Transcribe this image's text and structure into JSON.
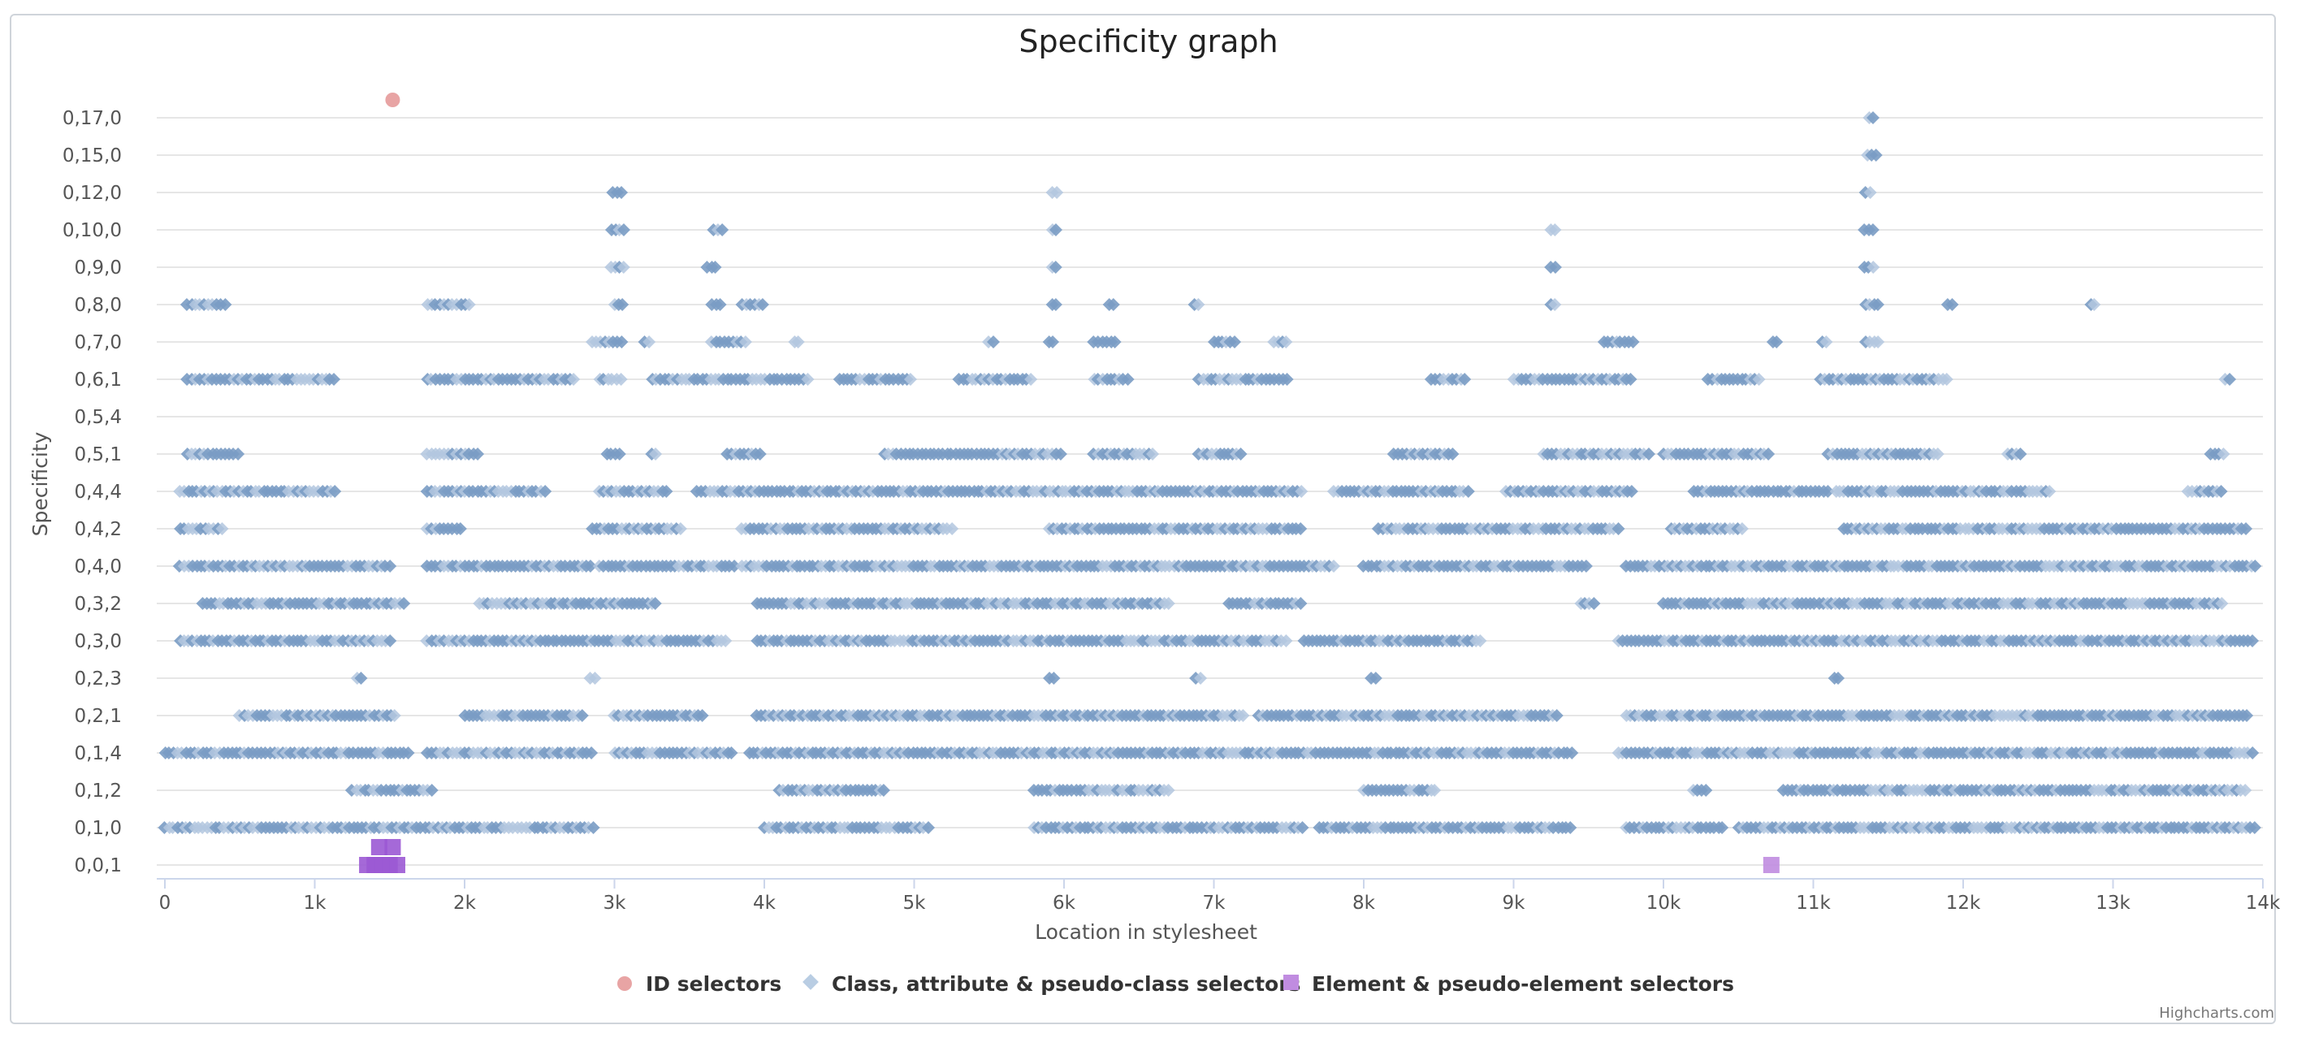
{
  "chart_data": {
    "type": "scatter",
    "title": "Specificity graph",
    "xlabel": "Location in stylesheet",
    "ylabel": "Specificity",
    "x_ticks": [
      "0",
      "1k",
      "2k",
      "3k",
      "4k",
      "5k",
      "6k",
      "7k",
      "8k",
      "9k",
      "10k",
      "11k",
      "12k",
      "13k",
      "14k"
    ],
    "y_ticks": [
      "0,0,1",
      "0,1,0",
      "0,1,2",
      "0,1,4",
      "0,2,1",
      "0,2,3",
      "0,3,0",
      "0,3,2",
      "0,4,0",
      "0,4,2",
      "0,4,4",
      "0,5,1",
      "0,5,4",
      "0,6,1",
      "0,7,0",
      "0,8,0",
      "0,9,0",
      "0,10,0",
      "0,12,0",
      "0,15,0",
      "0,17,0"
    ],
    "xlim": [
      0,
      14000
    ],
    "grid": true,
    "legend_position": "bottom",
    "credits": "Highcharts.com",
    "series": [
      {
        "name": "ID selectors",
        "color": "#e8a4a4",
        "marker": "circle",
        "points": [
          [
            1520,
            "0,17,0+"
          ]
        ]
      },
      {
        "name": "Class, attribute & pseudo-class selectors",
        "color": "#7a9cc4",
        "marker": "diamond",
        "bands": [
          {
            "y": "0,1,0",
            "ranges": [
              [
                0,
                2870
              ],
              [
                4000,
                5100
              ],
              [
                5800,
                7600
              ],
              [
                7700,
                9400
              ],
              [
                9750,
                10400
              ],
              [
                10500,
                13950
              ]
            ]
          },
          {
            "y": "0,1,2",
            "ranges": [
              [
                1250,
                1800
              ],
              [
                4100,
                4800
              ],
              [
                5800,
                6700
              ],
              [
                8000,
                8500
              ],
              [
                10200,
                10300
              ],
              [
                10800,
                13900
              ]
            ]
          },
          {
            "y": "0,1,4",
            "ranges": [
              [
                0,
                1650
              ],
              [
                1750,
                2850
              ],
              [
                3000,
                3800
              ],
              [
                3900,
                9400
              ],
              [
                9700,
                13950
              ]
            ]
          },
          {
            "y": "0,2,1",
            "ranges": [
              [
                500,
                1550
              ],
              [
                2000,
                2800
              ],
              [
                3000,
                3600
              ],
              [
                3950,
                7200
              ],
              [
                7300,
                9300
              ],
              [
                9750,
                13900
              ]
            ]
          },
          {
            "y": "0,2,3",
            "ranges": [
              [
                1280,
                1330
              ],
              [
                2840,
                2880
              ],
              [
                5900,
                5940
              ],
              [
                6880,
                6920
              ],
              [
                8050,
                8080
              ],
              [
                11140,
                11170
              ]
            ]
          },
          {
            "y": "0,3,0",
            "ranges": [
              [
                100,
                1500
              ],
              [
                1750,
                3750
              ],
              [
                3950,
                7500
              ],
              [
                7600,
                8800
              ],
              [
                9700,
                13950
              ]
            ]
          },
          {
            "y": "0,3,2",
            "ranges": [
              [
                250,
                1600
              ],
              [
                2100,
                3300
              ],
              [
                3950,
                6700
              ],
              [
                7100,
                7600
              ],
              [
                9450,
                9550
              ],
              [
                10000,
                13750
              ]
            ]
          },
          {
            "y": "0,4,0",
            "ranges": [
              [
                100,
                1500
              ],
              [
                1750,
                2850
              ],
              [
                2900,
                3800
              ],
              [
                3850,
                7800
              ],
              [
                8000,
                9500
              ],
              [
                9750,
                13950
              ]
            ]
          },
          {
            "y": "0,4,2",
            "ranges": [
              [
                100,
                400
              ],
              [
                1750,
                2000
              ],
              [
                2850,
                3450
              ],
              [
                3850,
                5250
              ],
              [
                5900,
                7600
              ],
              [
                8100,
                9700
              ],
              [
                10050,
                10550
              ],
              [
                11200,
                13900
              ]
            ]
          },
          {
            "y": "0,4,4",
            "ranges": [
              [
                100,
                1150
              ],
              [
                1750,
                2550
              ],
              [
                2900,
                3350
              ],
              [
                3550,
                7600
              ],
              [
                7800,
                8700
              ],
              [
                8950,
                9800
              ],
              [
                10200,
                11100
              ],
              [
                11150,
                12600
              ],
              [
                13500,
                13750
              ]
            ]
          },
          {
            "y": "0,5,1",
            "ranges": [
              [
                150,
                500
              ],
              [
                1750,
                2100
              ],
              [
                2950,
                3050
              ],
              [
                3250,
                3300
              ],
              [
                3750,
                4000
              ],
              [
                4800,
                6000
              ],
              [
                6200,
                6600
              ],
              [
                6900,
                7200
              ],
              [
                8200,
                8600
              ],
              [
                9200,
                9900
              ],
              [
                10000,
                10700
              ],
              [
                11100,
                11850
              ],
              [
                12300,
                12400
              ],
              [
                13650,
                13750
              ]
            ]
          },
          {
            "y": "0,6,1",
            "ranges": [
              [
                150,
                1150
              ],
              [
                1750,
                2750
              ],
              [
                2900,
                3050
              ],
              [
                3250,
                4300
              ],
              [
                4500,
                5000
              ],
              [
                5300,
                5800
              ],
              [
                6200,
                6450
              ],
              [
                6900,
                7500
              ],
              [
                8450,
                8700
              ],
              [
                9000,
                9800
              ],
              [
                10300,
                10650
              ],
              [
                11050,
                11900
              ],
              [
                13750,
                13780
              ]
            ]
          },
          {
            "y": "0,7,0",
            "ranges": [
              [
                2850,
                3050
              ],
              [
                3200,
                3250
              ],
              [
                3650,
                3900
              ],
              [
                4200,
                4250
              ],
              [
                5500,
                5550
              ],
              [
                5900,
                5950
              ],
              [
                6200,
                6350
              ],
              [
                7000,
                7150
              ],
              [
                7400,
                7500
              ],
              [
                9600,
                9800
              ],
              [
                10730,
                10760
              ],
              [
                11060,
                11100
              ],
              [
                11350,
                11450
              ]
            ]
          },
          {
            "y": "0,8,0",
            "ranges": [
              [
                150,
                420
              ],
              [
                1750,
                2050
              ],
              [
                3000,
                3080
              ],
              [
                3650,
                3720
              ],
              [
                3850,
                4000
              ],
              [
                5920,
                5950
              ],
              [
                6300,
                6330
              ],
              [
                6870,
                6900
              ],
              [
                9250,
                9280
              ],
              [
                11350,
                11440
              ],
              [
                11900,
                11940
              ],
              [
                12850,
                12880
              ]
            ]
          },
          {
            "y": "0,9,0",
            "ranges": [
              [
                2980,
                3080
              ],
              [
                3620,
                3700
              ],
              [
                5920,
                5950
              ],
              [
                9250,
                9290
              ],
              [
                11340,
                11400
              ]
            ]
          },
          {
            "y": "0,10,0",
            "ranges": [
              [
                2980,
                3080
              ],
              [
                3660,
                3720
              ],
              [
                5920,
                5950
              ],
              [
                9250,
                9290
              ],
              [
                11340,
                11400
              ]
            ]
          },
          {
            "y": "0,12,0",
            "ranges": [
              [
                2990,
                3060
              ],
              [
                5920,
                5950
              ],
              [
                11350,
                11400
              ]
            ]
          },
          {
            "y": "0,15,0",
            "ranges": [
              [
                11360,
                11420
              ]
            ]
          },
          {
            "y": "0,17,0",
            "ranges": [
              [
                11370,
                11420
              ]
            ]
          }
        ]
      },
      {
        "name": "Element & pseudo-element selectors",
        "color": "#9b59d4",
        "marker": "square",
        "points": [
          [
            1350,
            "0,0,1"
          ],
          [
            1400,
            "0,0,1"
          ],
          [
            1450,
            "0,0,1"
          ],
          [
            1500,
            "0,0,1"
          ],
          [
            1550,
            "0,0,1"
          ],
          [
            1430,
            "0,0,1+"
          ],
          [
            1520,
            "0,0,1+"
          ],
          [
            10720,
            "0,0,1"
          ]
        ]
      }
    ]
  }
}
